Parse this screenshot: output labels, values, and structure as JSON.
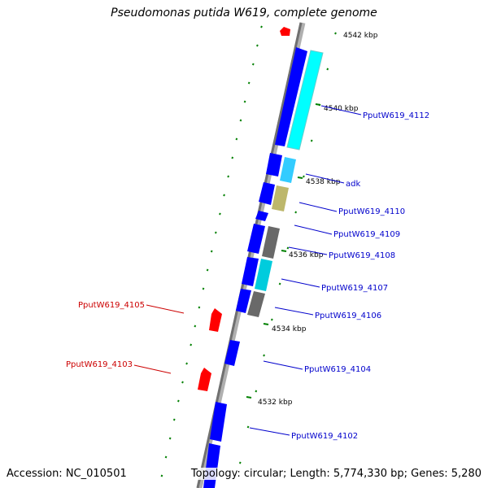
{
  "title": "Pseudomonas putida W619, complete genome",
  "footer": {
    "accession": "Accession: NC_010501",
    "summary": "Topology: circular; Length: 5,774,330 bp; Genes: 5,280"
  },
  "colors": {
    "backbone": "#808080",
    "cds": "#0000ff",
    "trna": "#ff0000",
    "tick": "#008000",
    "label_cds": "#0000cc",
    "label_trna": "#cc0000",
    "cyan": "#00ffff",
    "khaki": "#bdb76b",
    "gray": "#696969"
  },
  "scale_labels": [
    "4542 kbp",
    "4540 kbp",
    "4538 kbp",
    "4536 kbp",
    "4534 kbp",
    "4532 kbp"
  ],
  "gene_labels": [
    {
      "text": "PputW619_4112",
      "kind": "cds"
    },
    {
      "text": "adk",
      "kind": "cds"
    },
    {
      "text": "PputW619_4110",
      "kind": "cds"
    },
    {
      "text": "PputW619_4109",
      "kind": "cds"
    },
    {
      "text": "PputW619_4108",
      "kind": "cds"
    },
    {
      "text": "PputW619_4107",
      "kind": "cds"
    },
    {
      "text": "PputW619_4106",
      "kind": "cds"
    },
    {
      "text": "PputW619_4104",
      "kind": "cds"
    },
    {
      "text": "PputW619_4102",
      "kind": "cds"
    },
    {
      "text": "PputW619_4105",
      "kind": "trna"
    },
    {
      "text": "PputW619_4103",
      "kind": "trna"
    }
  ]
}
